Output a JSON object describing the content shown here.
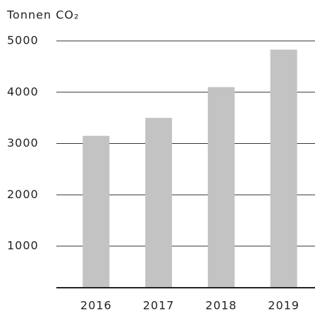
{
  "chart_data": {
    "type": "bar",
    "y_axis_label": "Tonnen CO₂",
    "categories": [
      "2016",
      "2017",
      "2018",
      "2019"
    ],
    "values": [
      3150,
      3500,
      4100,
      4830
    ],
    "color": "#c3c3c3",
    "ylim": [
      190,
      5000
    ],
    "yticks": [
      1000,
      2000,
      3000,
      4000,
      5000
    ],
    "grid": true
  }
}
